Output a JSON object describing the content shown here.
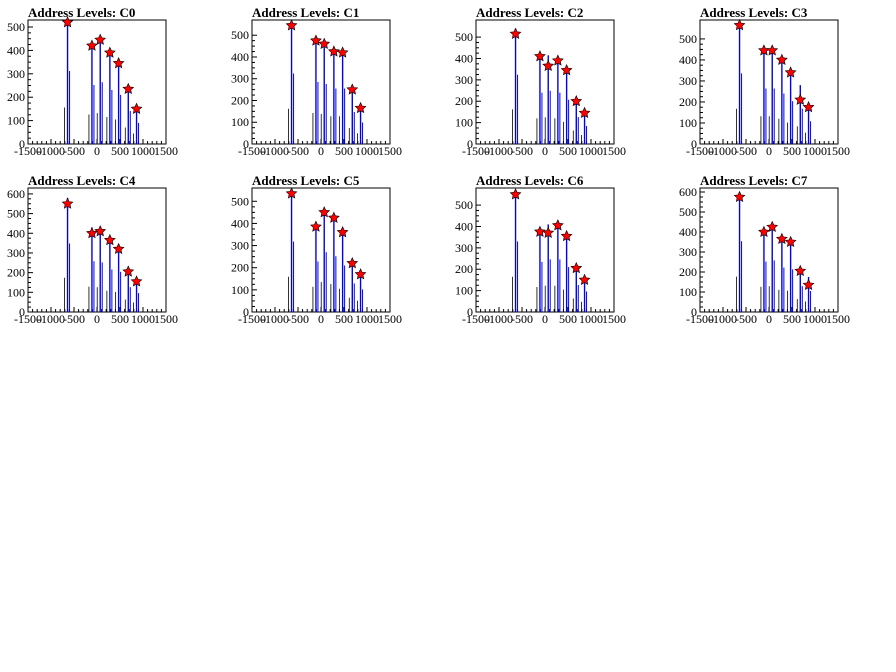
{
  "chart_data": [
    {
      "type": "bar",
      "title": "Address Levels: C0",
      "xlim": [
        -1500,
        1500
      ],
      "ylim": [
        0,
        530
      ],
      "yticks": [
        0,
        100,
        200,
        300,
        400,
        500
      ],
      "xticks": [
        -1500,
        -1000,
        -500,
        0,
        500,
        1000,
        1500
      ],
      "bars": [
        [
          -640,
          520
        ],
        [
          -110,
          420
        ],
        [
          70,
          440
        ],
        [
          280,
          385
        ],
        [
          470,
          350
        ],
        [
          680,
          235
        ],
        [
          860,
          150
        ]
      ],
      "peaks": [
        [
          -640,
          520
        ],
        [
          -110,
          420
        ],
        [
          70,
          445
        ],
        [
          280,
          390
        ],
        [
          470,
          345
        ],
        [
          680,
          235
        ],
        [
          860,
          150
        ]
      ]
    },
    {
      "type": "bar",
      "title": "Address Levels: C1",
      "xlim": [
        -1500,
        1500
      ],
      "ylim": [
        0,
        570
      ],
      "yticks": [
        0,
        100,
        200,
        300,
        400,
        500
      ],
      "xticks": [
        -1500,
        -1000,
        -500,
        0,
        500,
        1000,
        1500
      ],
      "bars": [
        [
          -640,
          540
        ],
        [
          -110,
          475
        ],
        [
          70,
          460
        ],
        [
          280,
          425
        ],
        [
          470,
          425
        ],
        [
          680,
          245
        ],
        [
          860,
          165
        ]
      ],
      "peaks": [
        [
          -640,
          545
        ],
        [
          -110,
          475
        ],
        [
          70,
          460
        ],
        [
          280,
          425
        ],
        [
          470,
          420
        ],
        [
          680,
          250
        ],
        [
          860,
          165
        ]
      ]
    },
    {
      "type": "bar",
      "title": "Address Levels: C2",
      "xlim": [
        -1500,
        1500
      ],
      "ylim": [
        0,
        580
      ],
      "yticks": [
        0,
        100,
        200,
        300,
        400,
        500
      ],
      "xticks": [
        -1500,
        -1000,
        -500,
        0,
        500,
        1000,
        1500
      ],
      "bars": [
        [
          -640,
          540
        ],
        [
          -110,
          400
        ],
        [
          70,
          415
        ],
        [
          280,
          400
        ],
        [
          470,
          345
        ],
        [
          680,
          210
        ],
        [
          860,
          140
        ]
      ],
      "peaks": [
        [
          -640,
          515
        ],
        [
          -110,
          410
        ],
        [
          70,
          365
        ],
        [
          280,
          390
        ],
        [
          470,
          345
        ],
        [
          680,
          200
        ],
        [
          860,
          145
        ]
      ]
    },
    {
      "type": "bar",
      "title": "Address Levels: C3",
      "xlim": [
        -1500,
        1500
      ],
      "ylim": [
        0,
        590
      ],
      "yticks": [
        0,
        100,
        200,
        300,
        400,
        500
      ],
      "xticks": [
        -1500,
        -1000,
        -500,
        0,
        500,
        1000,
        1500
      ],
      "bars": [
        [
          -640,
          560
        ],
        [
          -110,
          440
        ],
        [
          70,
          440
        ],
        [
          280,
          400
        ],
        [
          470,
          340
        ],
        [
          680,
          280
        ],
        [
          860,
          180
        ]
      ],
      "peaks": [
        [
          -640,
          565
        ],
        [
          -110,
          445
        ],
        [
          70,
          445
        ],
        [
          280,
          400
        ],
        [
          470,
          340
        ],
        [
          680,
          210
        ],
        [
          860,
          175
        ]
      ]
    },
    {
      "type": "bar",
      "title": "Address Levels: C4",
      "xlim": [
        -1500,
        1500
      ],
      "ylim": [
        0,
        630
      ],
      "yticks": [
        0,
        100,
        200,
        300,
        400,
        500,
        600
      ],
      "xticks": [
        -1500,
        -1000,
        -500,
        0,
        500,
        1000,
        1500
      ],
      "bars": [
        [
          -640,
          580
        ],
        [
          -110,
          430
        ],
        [
          70,
          420
        ],
        [
          280,
          360
        ],
        [
          470,
          340
        ],
        [
          680,
          210
        ],
        [
          860,
          160
        ]
      ],
      "peaks": [
        [
          -640,
          550
        ],
        [
          -110,
          400
        ],
        [
          70,
          410
        ],
        [
          280,
          365
        ],
        [
          470,
          320
        ],
        [
          680,
          205
        ],
        [
          860,
          155
        ]
      ]
    },
    {
      "type": "bar",
      "title": "Address Levels: C5",
      "xlim": [
        -1500,
        1500
      ],
      "ylim": [
        0,
        560
      ],
      "yticks": [
        0,
        100,
        200,
        300,
        400,
        500
      ],
      "xticks": [
        -1500,
        -1000,
        -500,
        0,
        500,
        1000,
        1500
      ],
      "bars": [
        [
          -640,
          530
        ],
        [
          -110,
          380
        ],
        [
          70,
          450
        ],
        [
          280,
          420
        ],
        [
          470,
          350
        ],
        [
          680,
          215
        ],
        [
          860,
          170
        ]
      ],
      "peaks": [
        [
          -640,
          535
        ],
        [
          -110,
          385
        ],
        [
          70,
          450
        ],
        [
          280,
          425
        ],
        [
          470,
          360
        ],
        [
          680,
          220
        ],
        [
          860,
          170
        ]
      ]
    },
    {
      "type": "bar",
      "title": "Address Levels: C6",
      "xlim": [
        -1500,
        1500
      ],
      "ylim": [
        0,
        580
      ],
      "yticks": [
        0,
        100,
        200,
        300,
        400,
        500
      ],
      "xticks": [
        -1500,
        -1000,
        -500,
        0,
        500,
        1000,
        1500
      ],
      "bars": [
        [
          -640,
          550
        ],
        [
          -110,
          390
        ],
        [
          70,
          410
        ],
        [
          280,
          410
        ],
        [
          470,
          350
        ],
        [
          680,
          210
        ],
        [
          860,
          160
        ]
      ],
      "peaks": [
        [
          -640,
          550
        ],
        [
          -110,
          375
        ],
        [
          70,
          370
        ],
        [
          280,
          405
        ],
        [
          470,
          355
        ],
        [
          680,
          205
        ],
        [
          860,
          150
        ]
      ]
    },
    {
      "type": "bar",
      "title": "Address Levels: C7",
      "xlim": [
        -1500,
        1500
      ],
      "ylim": [
        0,
        620
      ],
      "yticks": [
        0,
        100,
        200,
        300,
        400,
        500,
        600
      ],
      "xticks": [
        -1500,
        -1000,
        -500,
        0,
        500,
        1000,
        1500
      ],
      "bars": [
        [
          -640,
          590
        ],
        [
          -110,
          420
        ],
        [
          70,
          430
        ],
        [
          280,
          370
        ],
        [
          470,
          355
        ],
        [
          680,
          215
        ],
        [
          860,
          175
        ]
      ],
      "peaks": [
        [
          -640,
          575
        ],
        [
          -110,
          400
        ],
        [
          70,
          425
        ],
        [
          280,
          365
        ],
        [
          470,
          350
        ],
        [
          680,
          205
        ],
        [
          860,
          135
        ]
      ]
    }
  ]
}
